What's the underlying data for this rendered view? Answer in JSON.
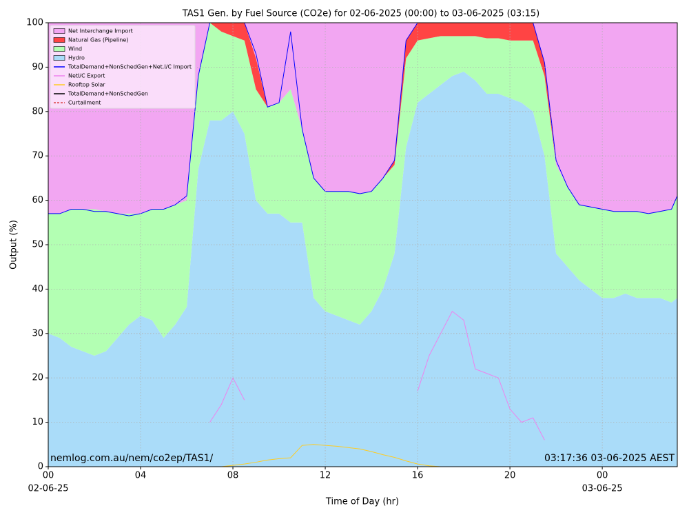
{
  "chart_data": {
    "type": "area",
    "title": "TAS1 Gen. by Fuel Source (CO2e) for 02-06-2025 (00:00) to 03-06-2025 (03:15)",
    "xlabel": "Time of Day (hr)",
    "ylabel": "Output (%)",
    "annotations": [
      "nemlog.com.au/nem/co2ep/TAS1/",
      "03:17:36 03-06-2025 AEST"
    ],
    "xlim": [
      0,
      27.25
    ],
    "ylim": [
      0,
      100
    ],
    "xticks": [
      {
        "value": 0,
        "label": "00"
      },
      {
        "value": 4,
        "label": "04"
      },
      {
        "value": 8,
        "label": "08"
      },
      12,
      16,
      20,
      {
        "value": 24,
        "label": "00"
      }
    ],
    "xtick_dates": [
      {
        "value": 0,
        "label": "02-06-25"
      },
      {
        "value": 24,
        "label": "03-06-25"
      }
    ],
    "yticks": [
      0,
      10,
      20,
      30,
      40,
      50,
      60,
      70,
      80,
      90,
      100
    ],
    "grid": true,
    "legend": "upper left",
    "x": [
      0,
      0.5,
      1,
      1.5,
      2,
      2.5,
      3,
      3.5,
      4,
      4.5,
      5,
      5.5,
      6,
      6.5,
      7,
      7.5,
      8,
      8.5,
      9,
      9.5,
      10,
      10.5,
      11,
      11.5,
      12,
      12.5,
      13,
      13.5,
      14,
      14.5,
      15,
      15.5,
      16,
      16.5,
      17,
      17.5,
      18,
      18.5,
      19,
      19.5,
      20,
      20.5,
      21,
      21.5,
      22,
      22.5,
      23,
      23.5,
      24,
      24.5,
      25,
      25.5,
      26,
      26.5,
      27,
      27.25
    ],
    "areas": [
      {
        "name": "Hydro",
        "color": "#aadcf9",
        "values": [
          30,
          29,
          27,
          26,
          25,
          26,
          29,
          32,
          34,
          33,
          29,
          32,
          36,
          67,
          78,
          78,
          80,
          75,
          60,
          57,
          57,
          55,
          55,
          38,
          35,
          34,
          33,
          32,
          35,
          40,
          48,
          72,
          82,
          84,
          86,
          88,
          89,
          87,
          84,
          84,
          83,
          82,
          80,
          70,
          48,
          45,
          42,
          40,
          38,
          38,
          39,
          38,
          38,
          38,
          37,
          38
        ]
      },
      {
        "name": "Wind",
        "color": "#b3ffb3",
        "values": [
          27,
          28,
          31,
          32,
          33,
          31.5,
          28,
          25,
          23,
          25,
          29,
          27,
          24,
          21,
          22,
          20,
          17,
          21,
          25,
          24,
          25,
          30,
          21,
          27,
          27,
          28,
          29,
          29.5,
          27,
          25,
          20,
          20,
          14,
          12.5,
          11,
          9,
          8,
          10,
          12.5,
          12.5,
          13,
          14,
          16,
          18,
          20,
          18,
          17,
          18.5,
          20,
          19.5,
          18.5,
          19.5,
          19,
          19.5,
          21,
          23
        ]
      },
      {
        "name": "Natural Gas (Pipeline)",
        "color": "#ff4444",
        "values": [
          0,
          0,
          0,
          0,
          0,
          0,
          0,
          0,
          0,
          0,
          0,
          0,
          0,
          0,
          0,
          2,
          3,
          4,
          7,
          0,
          0,
          0,
          0,
          0,
          0,
          0,
          0,
          0,
          0,
          0,
          1,
          4,
          4,
          3.5,
          3,
          3,
          3,
          3,
          3.5,
          3.5,
          4,
          4,
          4,
          3,
          0,
          0,
          0,
          0,
          0,
          0,
          0,
          0,
          0,
          0,
          0,
          0
        ]
      },
      {
        "name": "Net Interchange Import",
        "color": "#f2a6f2",
        "values": [
          43,
          43,
          42,
          42,
          42,
          42.5,
          43,
          43,
          43,
          42,
          42,
          41,
          40,
          12,
          0,
          0,
          0,
          0,
          8,
          19,
          18,
          15,
          24,
          35,
          38,
          38,
          38,
          38.5,
          38,
          35,
          31,
          4,
          0,
          0,
          0,
          0,
          0,
          0,
          0,
          0,
          0,
          0,
          0,
          9,
          32,
          37,
          41,
          41.5,
          42,
          42.5,
          42.5,
          42.5,
          43,
          42.5,
          42,
          39
        ]
      }
    ],
    "lines": [
      {
        "name": "TotalDemand+NonSchedGen+Net.I/C Import",
        "color": "#0000ff",
        "values": [
          57,
          57,
          58,
          58,
          57.5,
          57.5,
          57,
          56.5,
          57,
          58,
          58,
          59,
          61,
          88,
          100,
          100,
          100,
          100,
          93,
          81,
          82,
          98,
          76,
          65,
          62,
          62,
          62,
          61.5,
          62,
          65,
          69,
          96,
          100,
          100,
          100,
          100,
          100,
          100,
          100,
          100,
          100,
          100,
          100,
          91,
          69,
          63,
          59,
          58.5,
          58,
          57.5,
          57.5,
          57.5,
          57,
          57.5,
          58,
          61
        ]
      },
      {
        "name": "NetI/C Export",
        "color": "#ee82ee",
        "values": [
          null,
          null,
          null,
          null,
          null,
          null,
          null,
          null,
          null,
          null,
          null,
          null,
          null,
          null,
          10,
          14,
          20,
          15,
          null,
          null,
          null,
          null,
          null,
          null,
          null,
          null,
          null,
          null,
          null,
          null,
          null,
          null,
          17,
          25,
          30,
          35,
          33,
          22,
          21,
          20,
          13,
          10,
          11,
          6,
          null,
          null,
          null,
          null,
          null,
          null,
          null,
          null,
          null,
          null,
          null,
          null
        ]
      },
      {
        "name": "Rooftop Solar",
        "color": "#ffcc22",
        "values": [
          0,
          0,
          0,
          0,
          0,
          0,
          0,
          0,
          0,
          0,
          0,
          0,
          0,
          0,
          0,
          0,
          0.3,
          0.6,
          1.0,
          1.5,
          1.8,
          2,
          4.8,
          5,
          4.8,
          4.6,
          4.3,
          4,
          3.4,
          2.7,
          2.1,
          1.3,
          0.6,
          0.2,
          0,
          0,
          0,
          0,
          0,
          0,
          0,
          0,
          0,
          0,
          0,
          0,
          0,
          0,
          0,
          0,
          0,
          0,
          0,
          0,
          0,
          0
        ]
      },
      {
        "name": "TotalDemand+NonSchedGen",
        "color": "#000000"
      },
      {
        "name": "Curtailment",
        "color": "#dd4444",
        "dashed": true
      }
    ]
  }
}
